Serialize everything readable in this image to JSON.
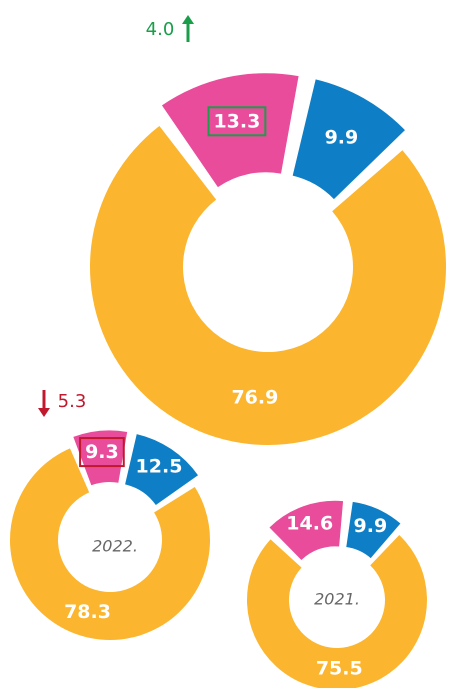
{
  "chart_data": [
    {
      "type": "donut",
      "values": [
        13.3,
        9.9,
        76.9
      ],
      "colors": [
        "#e94c9b",
        "#0e7fc6",
        "#fbb52e"
      ],
      "annotation": "4.0",
      "annotation_direction": "up",
      "annotation_color": "#1a9e4a",
      "highlight": 0
    },
    {
      "type": "donut",
      "center_label": "2022.",
      "values": [
        9.3,
        12.5,
        78.3
      ],
      "colors": [
        "#e94c9b",
        "#0e7fc6",
        "#fbb52e"
      ],
      "annotation": "5.3",
      "annotation_direction": "down",
      "annotation_color": "#c0192e",
      "highlight": 0
    },
    {
      "type": "donut",
      "center_label": "2021.",
      "values": [
        14.6,
        9.9,
        75.5
      ],
      "colors": [
        "#e94c9b",
        "#0e7fc6",
        "#fbb52e"
      ]
    }
  ]
}
